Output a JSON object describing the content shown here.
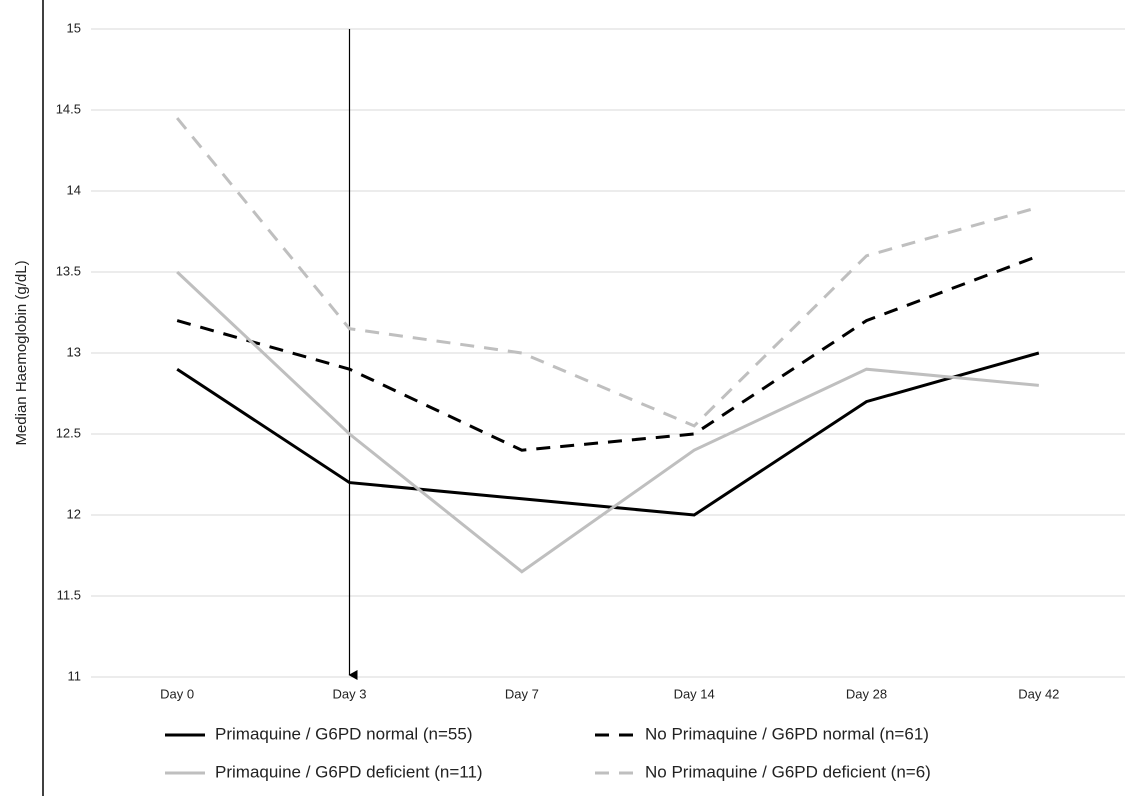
{
  "chart_data": {
    "type": "line",
    "y_label": "Median Haemoglobin (g/dL)",
    "categories": [
      "Day 0",
      "Day 3",
      "Day 7",
      "Day 14",
      "Day 28",
      "Day 42"
    ],
    "series": [
      {
        "name": "Primaquine / G6PD normal (n=55)",
        "color": "#000000",
        "dashed": false,
        "values": [
          12.9,
          12.2,
          12.1,
          12.0,
          12.7,
          13.0
        ]
      },
      {
        "name": "No Primaquine / G6PD normal (n=61)",
        "color": "#000000",
        "dashed": true,
        "values": [
          13.2,
          12.9,
          12.4,
          12.5,
          13.2,
          13.6
        ]
      },
      {
        "name": "Primaquine / G6PD deficient (n=11)",
        "color": "#bfbfbf",
        "dashed": false,
        "values": [
          13.5,
          12.5,
          11.65,
          12.4,
          12.9,
          12.8
        ]
      },
      {
        "name": "No Primaquine / G6PD deficient (n=6)",
        "color": "#bfbfbf",
        "dashed": true,
        "values": [
          14.45,
          13.15,
          13.0,
          12.55,
          13.6,
          13.9
        ]
      }
    ],
    "ylim": [
      11,
      15
    ],
    "yticks": [
      11,
      11.5,
      12,
      12.5,
      13,
      13.5,
      14,
      14.5,
      15
    ],
    "grid": true
  }
}
